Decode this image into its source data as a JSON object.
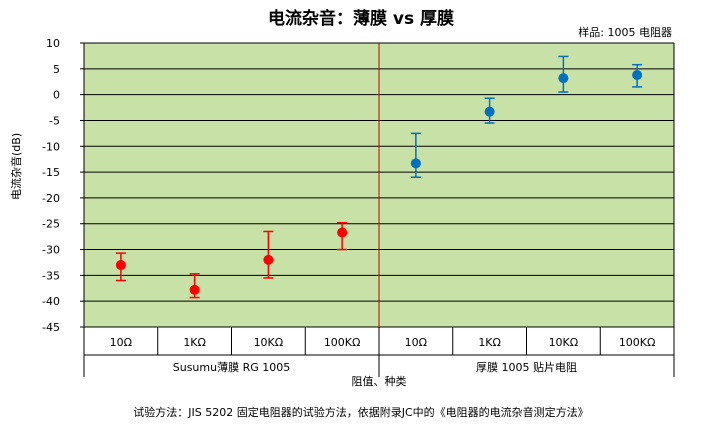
{
  "chart_data": {
    "type": "scatter",
    "title": "电流杂音：薄膜 vs 厚膜",
    "subtitle": "样品: 1005 电阻器",
    "ylabel": "电流杂音(dB)",
    "xlabel": "阻值、种类",
    "ylim": [
      -45,
      10
    ],
    "yticks": [
      10,
      5,
      0,
      -5,
      -10,
      -15,
      -20,
      -25,
      -30,
      -35,
      -40,
      -45
    ],
    "grid": true,
    "categories": [
      "10Ω",
      "1KΩ",
      "10KΩ",
      "100KΩ",
      "10Ω",
      "1KΩ",
      "10KΩ",
      "100KΩ"
    ],
    "groups": [
      {
        "label": "Susumu薄膜 RG 1005",
        "span": [
          0,
          3
        ]
      },
      {
        "label": "厚膜 1005 贴片电阻",
        "span": [
          4,
          7
        ]
      }
    ],
    "series": [
      {
        "color": "#ff0000",
        "x": [
          0,
          1,
          2,
          3
        ],
        "y": [
          -33,
          -37.8,
          -32,
          -26.7
        ],
        "y_max": [
          -30.7,
          -34.7,
          -26.5,
          -24.8
        ],
        "y_min": [
          -36,
          -39.3,
          -35.5,
          -30
        ]
      },
      {
        "color": "#0070c0",
        "x": [
          4,
          5,
          6,
          7
        ],
        "y": [
          -13.3,
          -3.3,
          3.2,
          3.8
        ],
        "y_max": [
          -7.5,
          -0.7,
          7.4,
          5.8
        ],
        "y_min": [
          -16,
          -5.5,
          0.5,
          1.5
        ]
      }
    ],
    "divider_after_category": 3,
    "divider_color": "#c00000",
    "plot_background": "#c8e1a6",
    "caption": "试验方法：JIS 5202 固定电阻器的试验方法，依据附录JC中的《电阻器的电流杂音测定方法》"
  }
}
